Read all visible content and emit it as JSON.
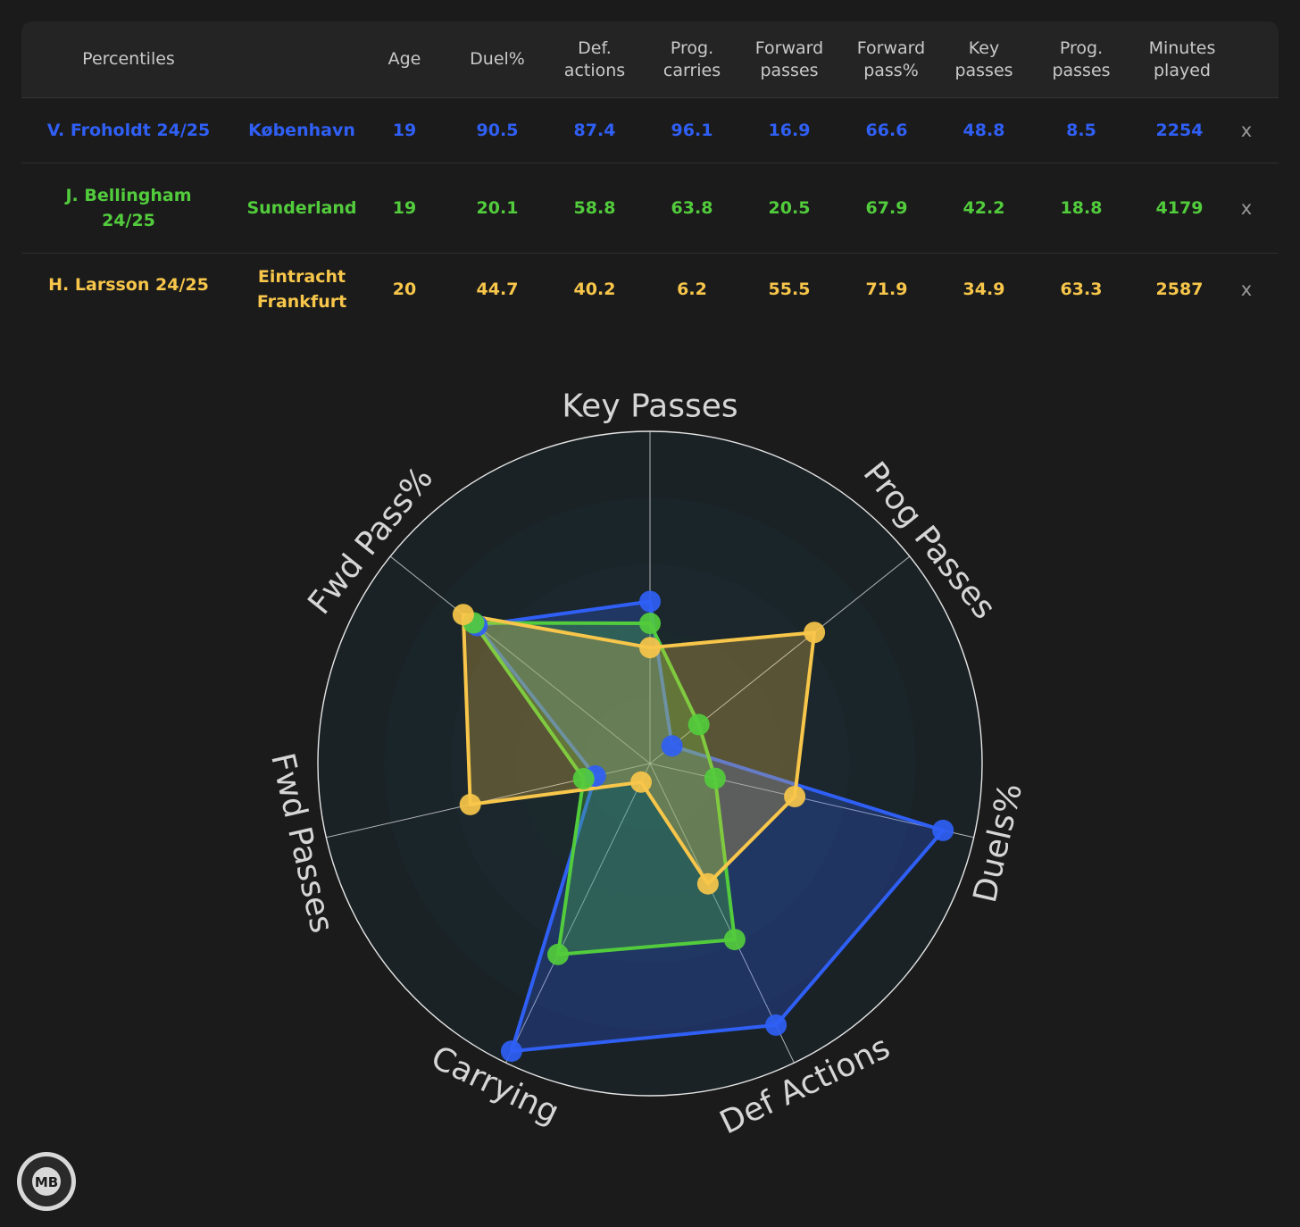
{
  "table": {
    "headers": {
      "percentiles": "Percentiles",
      "age": "Age",
      "duel": "Duel%",
      "def_actions": "Def.\nactions",
      "prog_carries": "Prog.\ncarries",
      "forward_passes": "Forward\npasses",
      "forward_pass_pct": "Forward\npass%",
      "key_passes": "Key\npasses",
      "prog_passes": "Prog.\npasses",
      "minutes": "Minutes\nplayed"
    },
    "rows": [
      {
        "player": "V. Froholdt 24/25",
        "team": "København",
        "age": "19",
        "duel": "90.5",
        "def_actions": "87.4",
        "prog_carries": "96.1",
        "forward_passes": "16.9",
        "forward_pass_pct": "66.6",
        "key_passes": "48.8",
        "prog_passes": "8.5",
        "minutes": "2254",
        "remove": "x",
        "color": "#2f5ff5"
      },
      {
        "player": "J. Bellingham\n24/25",
        "team": "Sunderland",
        "age": "19",
        "duel": "20.1",
        "def_actions": "58.8",
        "prog_carries": "63.8",
        "forward_passes": "20.5",
        "forward_pass_pct": "67.9",
        "key_passes": "42.2",
        "prog_passes": "18.8",
        "minutes": "4179",
        "remove": "x",
        "color": "#52cc3c"
      },
      {
        "player": "H. Larsson 24/25",
        "team": "Eintracht\nFrankfurt",
        "age": "20",
        "duel": "44.7",
        "def_actions": "40.2",
        "prog_carries": "6.2",
        "forward_passes": "55.5",
        "forward_pass_pct": "71.9",
        "key_passes": "34.9",
        "prog_passes": "63.3",
        "minutes": "2587",
        "remove": "x",
        "color": "#f7c64a"
      }
    ]
  },
  "chart_data": {
    "type": "radar",
    "axes": [
      "Key Passes",
      "Prog Passes",
      "Duels%",
      "Def Actions",
      "Carrying",
      "Fwd Passes",
      "Fwd Pass%"
    ],
    "range": [
      0,
      100
    ],
    "grid": true,
    "series": [
      {
        "name": "V. Froholdt 24/25",
        "color": "#2f5ff5",
        "values": [
          48.8,
          8.5,
          90.5,
          87.4,
          96.1,
          16.9,
          66.6
        ]
      },
      {
        "name": "J. Bellingham 24/25",
        "color": "#52cc3c",
        "values": [
          42.2,
          18.8,
          20.1,
          58.8,
          63.8,
          20.5,
          67.9
        ]
      },
      {
        "name": "H. Larsson 24/25",
        "color": "#f7c64a",
        "values": [
          34.9,
          63.3,
          44.7,
          40.2,
          6.2,
          55.5,
          71.9
        ]
      }
    ]
  },
  "logo_text": "MB",
  "colors": {
    "background": "#1b1b1b",
    "header_bg": "#242424",
    "plot_bg": "#1a2226",
    "grid": "#e6e6e6"
  }
}
